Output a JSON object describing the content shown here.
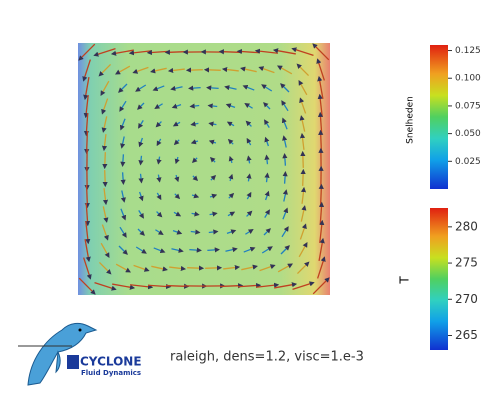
{
  "colorbars": [
    {
      "label": "Snelheden",
      "range": [
        0,
        0.13
      ],
      "ticks": [
        {
          "value": 0.025,
          "label": "0.025"
        },
        {
          "value": 0.05,
          "label": "0.050"
        },
        {
          "value": 0.075,
          "label": "0.075"
        },
        {
          "value": 0.1,
          "label": "0.100"
        },
        {
          "value": 0.125,
          "label": "0.125"
        }
      ]
    },
    {
      "label": "T",
      "range": [
        263,
        282.6
      ],
      "ticks": [
        265,
        270,
        275,
        280
      ]
    }
  ],
  "caption": "raleigh, dens=1.2, visc=1.e-3",
  "logo": {
    "name": "CYCLONE",
    "subtitle": "Fluid Dynamics"
  }
}
